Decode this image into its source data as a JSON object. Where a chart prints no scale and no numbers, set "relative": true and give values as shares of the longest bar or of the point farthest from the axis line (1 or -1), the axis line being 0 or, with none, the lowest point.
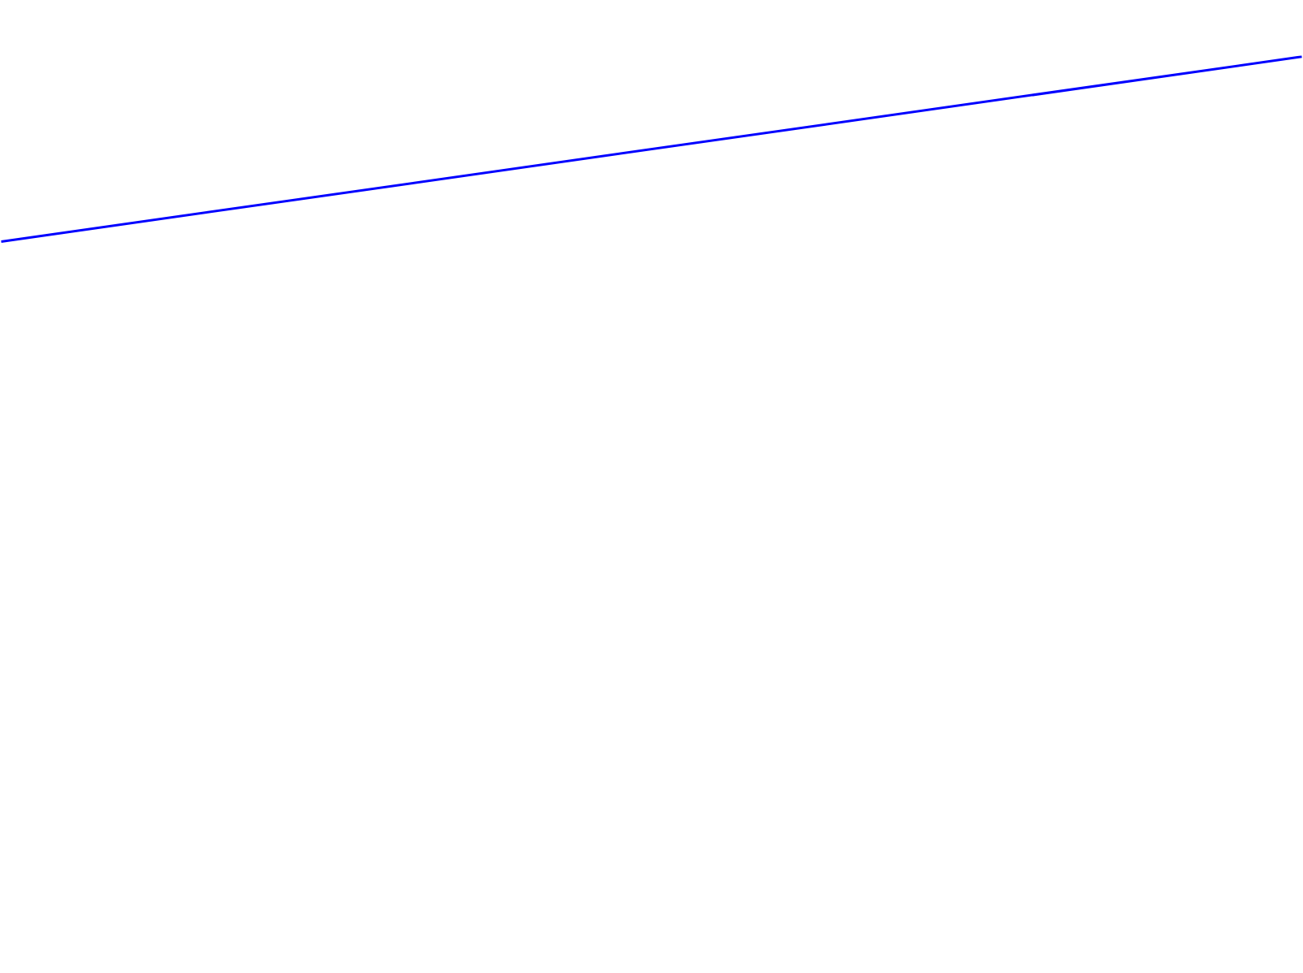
{
  "chart_data": {
    "type": "line",
    "relative": true,
    "categories": [
      null,
      null
    ],
    "values": [
      0,
      1
    ],
    "color": "#0000ff"
  }
}
